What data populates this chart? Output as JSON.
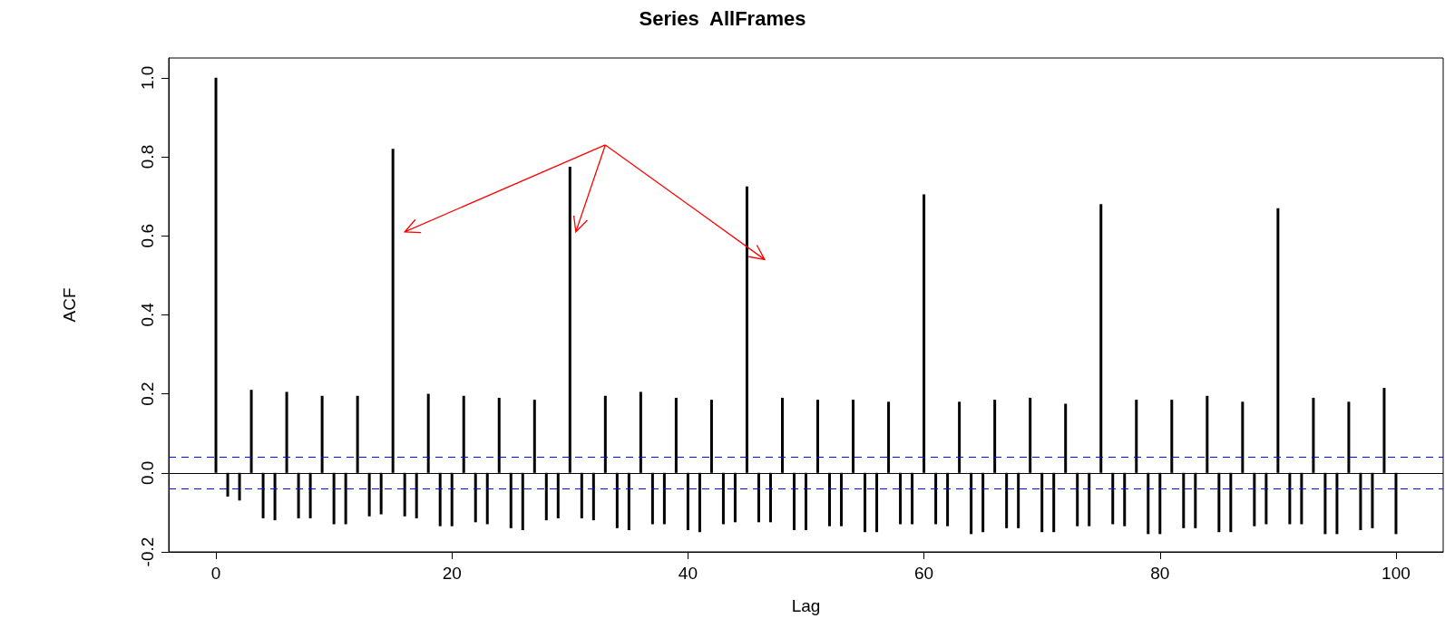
{
  "chart_data": {
    "type": "bar",
    "title": "Series  AllFrames",
    "xlabel": "Lag",
    "ylabel": "ACF",
    "x": [
      0,
      1,
      2,
      3,
      4,
      5,
      6,
      7,
      8,
      9,
      10,
      11,
      12,
      13,
      14,
      15,
      16,
      17,
      18,
      19,
      20,
      21,
      22,
      23,
      24,
      25,
      26,
      27,
      28,
      29,
      30,
      31,
      32,
      33,
      34,
      35,
      36,
      37,
      38,
      39,
      40,
      41,
      42,
      43,
      44,
      45,
      46,
      47,
      48,
      49,
      50,
      51,
      52,
      53,
      54,
      55,
      56,
      57,
      58,
      59,
      60,
      61,
      62,
      63,
      64,
      65,
      66,
      67,
      68,
      69,
      70,
      71,
      72,
      73,
      74,
      75,
      76,
      77,
      78,
      79,
      80,
      81,
      82,
      83,
      84,
      85,
      86,
      87,
      88,
      89,
      90,
      91,
      92,
      93,
      94,
      95,
      96,
      97,
      98,
      99,
      100
    ],
    "series": [
      {
        "color": "#000000",
        "values": [
          1.0,
          -0.06,
          -0.07,
          0.21,
          -0.115,
          -0.12,
          0.205,
          -0.115,
          -0.115,
          0.195,
          -0.13,
          -0.13,
          0.195,
          -0.11,
          -0.105,
          0.82,
          -0.11,
          -0.115,
          0.2,
          -0.135,
          -0.135,
          0.195,
          -0.125,
          -0.13,
          0.19,
          -0.14,
          -0.145,
          0.185,
          -0.12,
          -0.115,
          0.775,
          -0.115,
          -0.12,
          0.195,
          -0.14,
          -0.145,
          0.205,
          -0.13,
          -0.13,
          0.19,
          -0.145,
          -0.15,
          0.185,
          -0.13,
          -0.125,
          0.725,
          -0.125,
          -0.125,
          0.19,
          -0.145,
          -0.145,
          0.185,
          -0.135,
          -0.135,
          0.185,
          -0.15,
          -0.15,
          0.18,
          -0.13,
          -0.13,
          0.705,
          -0.13,
          -0.135,
          0.18,
          -0.155,
          -0.15,
          0.185,
          -0.14,
          -0.14,
          0.19,
          -0.15,
          -0.15,
          0.175,
          -0.135,
          -0.135,
          0.68,
          -0.13,
          -0.135,
          0.185,
          -0.155,
          -0.155,
          0.185,
          -0.14,
          -0.14,
          0.195,
          -0.15,
          -0.15,
          0.18,
          -0.135,
          -0.13,
          0.67,
          -0.13,
          -0.13,
          0.19,
          -0.155,
          -0.155,
          0.18,
          -0.145,
          -0.14,
          0.215,
          -0.155
        ]
      }
    ],
    "xlim": [
      -4,
      104
    ],
    "xticks": [
      0,
      20,
      40,
      60,
      80,
      100
    ],
    "ylim": [
      -0.2,
      1.05
    ],
    "yticks": [
      -0.2,
      {
        "value": 0,
        "label": "0.0"
      },
      0.2,
      0.4,
      0.6,
      0.8,
      {
        "value": 1,
        "label": "1.0"
      }
    ],
    "ref_lines": [
      {
        "axis": "y",
        "value": 0,
        "color": "#000000",
        "line_style": "solid"
      },
      {
        "axis": "y",
        "value": 0.043,
        "color": "#0000ff",
        "line_style": "dashed"
      },
      {
        "axis": "y",
        "value": -0.043,
        "color": "#0000ff",
        "line_style": "dashed"
      }
    ],
    "grid": false
  }
}
